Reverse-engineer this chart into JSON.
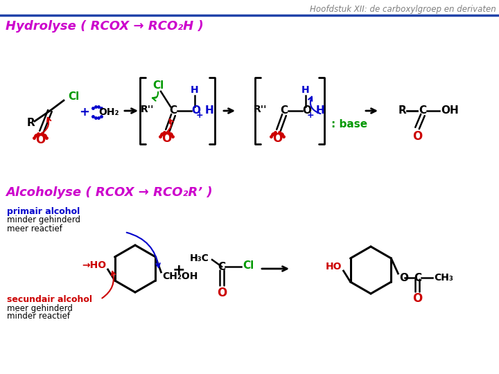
{
  "title": "Hoofdstuk XII: de carboxylgroep en derivaten",
  "title_color": "#7f7f7f",
  "title_fontsize": 8.5,
  "hydrolyse_label": "Hydrolyse ( RCOX → RCO₂H )",
  "alcoholyse_label": "Alcoholyse ( RCOX → RCO₂R’ )",
  "section_label_color": "#cc00cc",
  "section_label_fontsize": 13,
  "background_color": "#ffffff",
  "black": "#000000",
  "red": "#cc0000",
  "green": "#009900",
  "blue": "#0000cc"
}
